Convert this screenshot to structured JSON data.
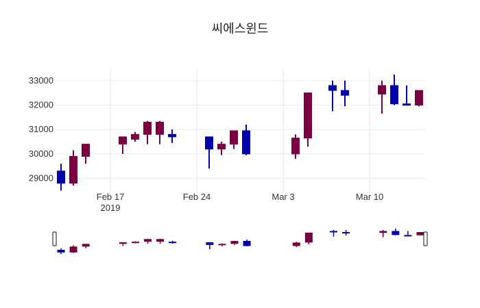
{
  "chart_data": {
    "type": "candlestick",
    "title": "씨에스윈드",
    "xlabel": "",
    "ylabel": "",
    "x_tick_labels": [
      {
        "date": "2019-02-17",
        "label": "Feb 17",
        "sublabel": "2019"
      },
      {
        "date": "2019-02-24",
        "label": "Feb 24"
      },
      {
        "date": "2019-03-03",
        "label": "Mar 3"
      },
      {
        "date": "2019-03-10",
        "label": "Mar 10"
      }
    ],
    "y_ticks": [
      29000,
      30000,
      31000,
      32000,
      33000
    ],
    "y_tick_labels": [
      "29000",
      "30000",
      "31000",
      "32000",
      "33000"
    ],
    "xlim": [
      "2019-02-13",
      "2019-03-14"
    ],
    "ylim": [
      28400,
      33500
    ],
    "grid": true,
    "range_slider": true,
    "colors": {
      "increasing": "#7b0041",
      "decreasing": "#0000aa"
    },
    "series": [
      {
        "points": [
          {
            "date": "2019-02-13",
            "open": 29300,
            "high": 29600,
            "low": 28500,
            "close": 28800,
            "dir": "dec"
          },
          {
            "date": "2019-02-14",
            "open": 28800,
            "high": 30150,
            "low": 28700,
            "close": 29900,
            "dir": "inc"
          },
          {
            "date": "2019-02-15",
            "open": 29900,
            "high": 30400,
            "low": 29600,
            "close": 30400,
            "dir": "inc"
          },
          {
            "date": "2019-02-18",
            "open": 30400,
            "high": 30700,
            "low": 30000,
            "close": 30700,
            "dir": "inc"
          },
          {
            "date": "2019-02-19",
            "open": 30600,
            "high": 30900,
            "low": 30500,
            "close": 30800,
            "dir": "inc"
          },
          {
            "date": "2019-02-20",
            "open": 30800,
            "high": 31350,
            "low": 30400,
            "close": 31300,
            "dir": "inc"
          },
          {
            "date": "2019-02-21",
            "open": 30800,
            "high": 31350,
            "low": 30400,
            "close": 31300,
            "dir": "inc"
          },
          {
            "date": "2019-02-22",
            "open": 30800,
            "high": 31000,
            "low": 30450,
            "close": 30700,
            "dir": "dec"
          },
          {
            "date": "2019-02-25",
            "open": 30700,
            "high": 30700,
            "low": 29400,
            "close": 30200,
            "dir": "dec"
          },
          {
            "date": "2019-02-26",
            "open": 30200,
            "high": 30500,
            "low": 29950,
            "close": 30400,
            "dir": "inc"
          },
          {
            "date": "2019-02-27",
            "open": 30400,
            "high": 30950,
            "low": 30200,
            "close": 30950,
            "dir": "inc"
          },
          {
            "date": "2019-02-28",
            "open": 30950,
            "high": 31200,
            "low": 29950,
            "close": 30000,
            "dir": "dec"
          },
          {
            "date": "2019-03-04",
            "open": 30000,
            "high": 30800,
            "low": 29800,
            "close": 30650,
            "dir": "inc"
          },
          {
            "date": "2019-03-05",
            "open": 30650,
            "high": 32500,
            "low": 30300,
            "close": 32500,
            "dir": "inc"
          },
          {
            "date": "2019-03-07",
            "open": 32800,
            "high": 33000,
            "low": 31750,
            "close": 32600,
            "dir": "dec"
          },
          {
            "date": "2019-03-08",
            "open": 32600,
            "high": 33000,
            "low": 31950,
            "close": 32400,
            "dir": "dec"
          },
          {
            "date": "2019-03-11",
            "open": 32450,
            "high": 33000,
            "low": 31650,
            "close": 32800,
            "dir": "inc"
          },
          {
            "date": "2019-03-12",
            "open": 32800,
            "high": 33250,
            "low": 32000,
            "close": 32050,
            "dir": "dec"
          },
          {
            "date": "2019-03-13",
            "open": 32050,
            "high": 32800,
            "low": 32000,
            "close": 32000,
            "dir": "dec"
          },
          {
            "date": "2019-03-14",
            "open": 32000,
            "high": 32600,
            "low": 31950,
            "close": 32600,
            "dir": "inc"
          }
        ]
      }
    ]
  }
}
